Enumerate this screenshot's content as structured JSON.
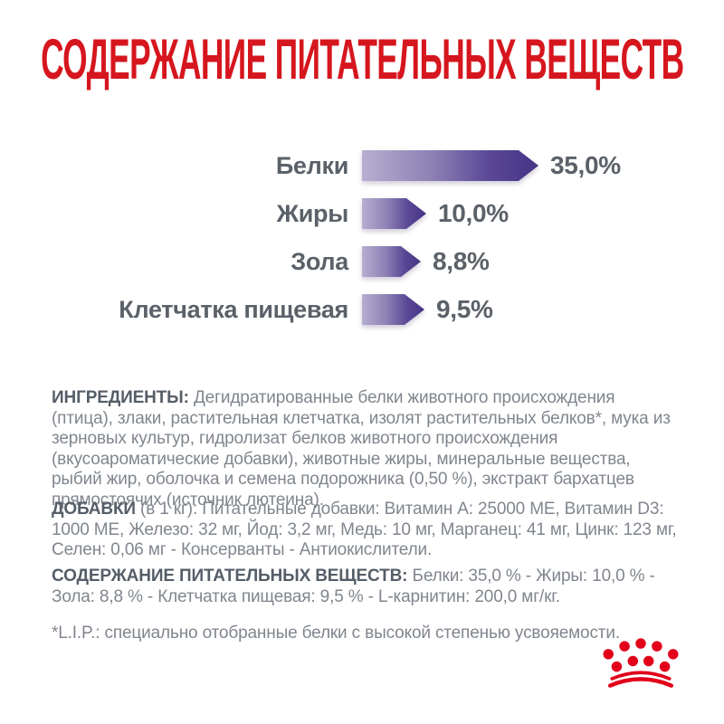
{
  "title": "СОДЕРЖАНИЕ ПИТАТЕЛЬНЫХ ВЕЩЕСТВ",
  "chart_data": {
    "type": "bar",
    "orientation": "horizontal",
    "categories": [
      "Белки",
      "Жиры",
      "Зола",
      "Клетчатка пищевая"
    ],
    "values": [
      35.0,
      10.0,
      8.8,
      9.5
    ],
    "value_labels": [
      "35,0%",
      "10,0%",
      "8,8%",
      "9,5%"
    ],
    "unit": "%",
    "xlim": [
      0,
      35
    ],
    "grid": false,
    "legend": "none",
    "bar_gradient": [
      "#b7aed0",
      "#8d80b4",
      "#5a4896",
      "#463385"
    ]
  },
  "sections": {
    "ingredients": {
      "label": "ИНГРЕДИЕНТЫ:",
      "text": "Дегидратированные белки животного происхождения (птица), злаки, растительная клетчатка, изолят растительных белков*, мука из зерновых культур, гидролизат белков животного происхождения (вкусоароматические добавки), животные жиры, минеральные вещества, рыбий жир, оболочка и семена подорожника (0,50 %), экстракт бархатцев прямостоячих (источник лютеина)."
    },
    "additives": {
      "label": "ДОБАВКИ",
      "label_suffix": "(в 1 кг):",
      "text": "Питательные добавки: Витамин A: 25000 МЕ, Витамин D3: 1000 МЕ, Железо: 32 мг, Йод: 3,2 мг, Медь: 10 мг, Марганец: 41 мг, Цинк: 123 мг, Селен: 0,06 мг - Консерванты - Антиокислители."
    },
    "analysis": {
      "label": "СОДЕРЖАНИЕ ПИТАТЕЛЬНЫХ ВЕЩЕСТВ:",
      "text": "Белки: 35,0 % - Жиры: 10,0 % - Зола: 8,8 % - Клетчатка пищевая: 9,5 % - L-карнитин: 200,0 мг/кг."
    },
    "footnote": "*L.I.P.: специально отобранные белки с высокой степенью усвояемости."
  },
  "logo": {
    "name": "royal-canin-crown",
    "color": "#e2001a"
  },
  "colors": {
    "title_red": "#d6161e",
    "heading_gray": "#555e68",
    "body_gray": "#80868e",
    "chart_gray": "#5b6169",
    "logo_red": "#e2001a"
  }
}
